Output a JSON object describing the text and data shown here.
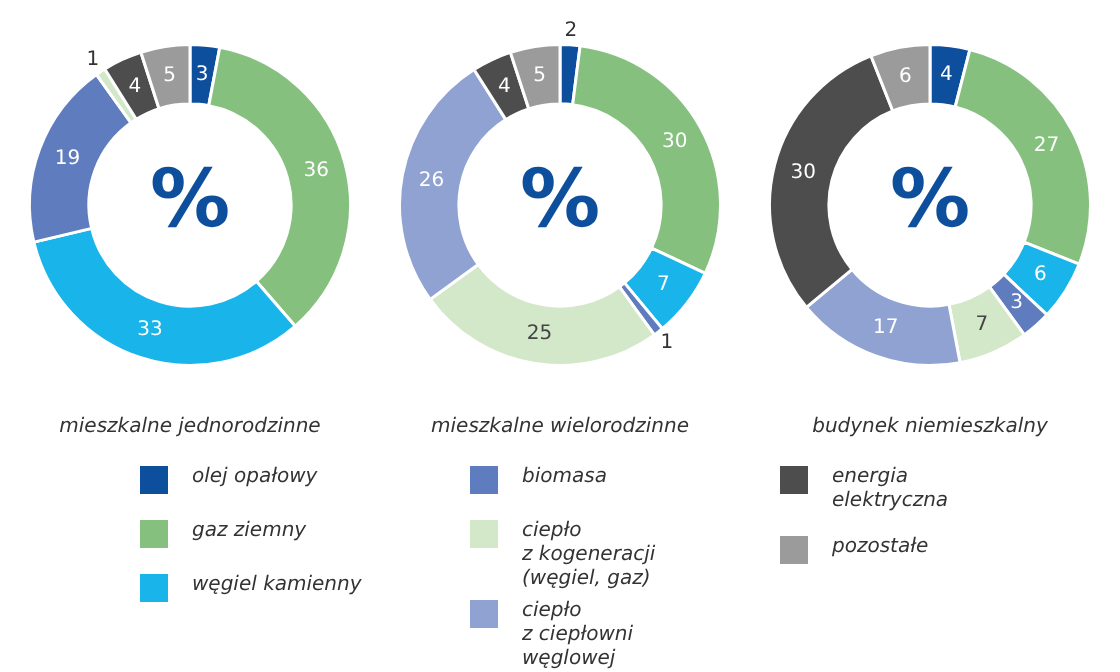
{
  "chart_data": [
    {
      "type": "donut",
      "title": "mieszkalne jednorodzinne",
      "categories": [
        "olej opałowy",
        "gaz ziemny",
        "węgiel kamienny",
        "biomasa",
        "ciepło\nz kogeneracji\n(węgiel, gaz)",
        "ciepło\nz ciepłowni\nwęglowej",
        "energia elektryczna",
        "pozostałe"
      ],
      "values": [
        3,
        36,
        33,
        19,
        1,
        null,
        4,
        5
      ],
      "colors": [
        "#0d4f9c",
        "#86c07f",
        "#19b4ea",
        "#5f7cbf",
        "#d3e8c8",
        "#8fa2d2",
        "#4d4d4d",
        "#9b9b9b"
      ],
      "data_labels": true,
      "legend": "bottom",
      "annotations": [
        "%"
      ]
    },
    {
      "type": "donut",
      "title": "mieszkalne wielorodzinne",
      "categories": [
        null,
        null,
        null,
        null,
        null,
        null,
        null,
        null
      ],
      "values": [
        2,
        30,
        7,
        1,
        25,
        26,
        4,
        5
      ],
      "colors": [
        "#0d4f9c",
        "#86c07f",
        "#19b4ea",
        "#5f7cbf",
        "#d3e8c8",
        "#8fa2d2",
        "#4d4d4d",
        "#9b9b9b"
      ],
      "data_labels": true,
      "annotations": [
        "%"
      ]
    },
    {
      "type": "donut",
      "title": "budynek niemieszkalny",
      "categories": [
        null,
        null,
        null,
        null,
        null,
        null,
        null,
        null
      ],
      "values": [
        4,
        27,
        6,
        3,
        7,
        17,
        30,
        6
      ],
      "colors": [
        "#0d4f9c",
        "#86c07f",
        "#19b4ea",
        "#5f7cbf",
        "#d3e8c8",
        "#8fa2d2",
        "#4d4d4d",
        "#9b9b9b"
      ],
      "data_labels": true,
      "annotations": [
        "%"
      ]
    }
  ]
}
